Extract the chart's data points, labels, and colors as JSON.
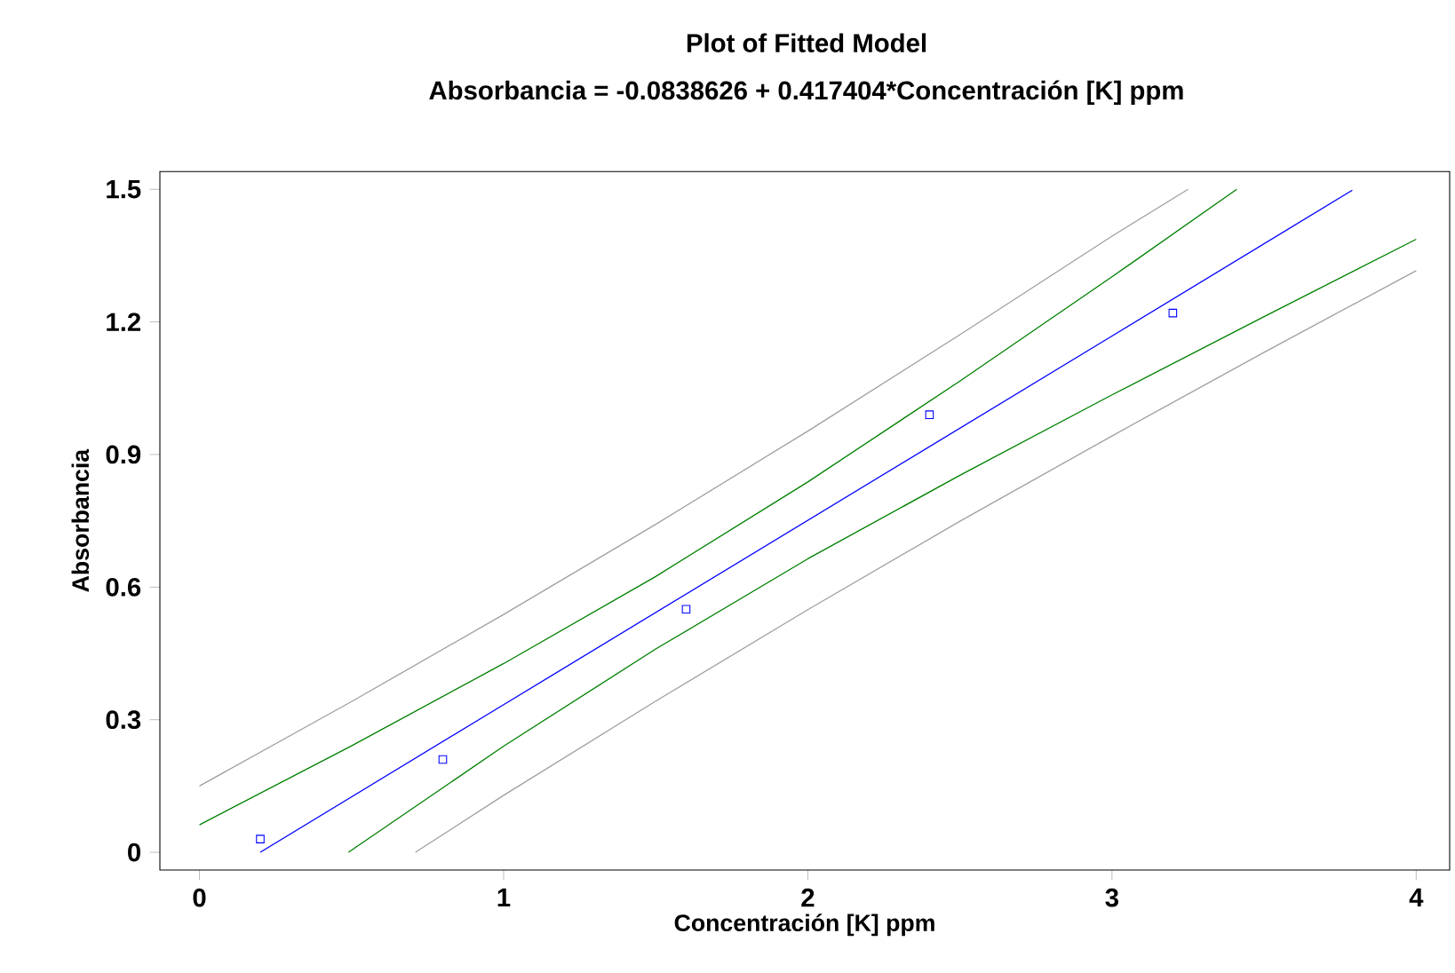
{
  "chart_data": {
    "type": "line",
    "title": "Plot of Fitted Model",
    "subtitle": "Absorbancia = -0.0838626 + 0.417404*Concentración [K] ppm",
    "xlabel": "Concentración [K] ppm",
    "ylabel": "Absorbancia",
    "xlim": [
      -0.13,
      4.11
    ],
    "ylim": [
      -0.04,
      1.54
    ],
    "xticks": [
      0,
      1,
      2,
      3,
      4
    ],
    "yticks": [
      0,
      0.3,
      0.6,
      0.9,
      1.2,
      1.5
    ],
    "grid": false,
    "series": [
      {
        "type": "scatter",
        "marker": "square",
        "color": "#0000ff",
        "x": [
          0.2,
          0.8,
          1.6,
          2.4,
          3.2
        ],
        "values": [
          0.03,
          0.21,
          0.55,
          0.99,
          1.22
        ]
      },
      {
        "marker": "none",
        "color": "#0000ff",
        "x": [
          0.2,
          1,
          2,
          3,
          3.79
        ],
        "values": [
          0.0,
          0.334,
          0.751,
          1.168,
          1.498
        ]
      },
      {
        "marker": "none",
        "color": "#008000",
        "x": [
          0,
          0.5,
          1,
          1.5,
          2,
          2.5,
          3,
          3.41
        ],
        "values": [
          0.062,
          0.241,
          0.427,
          0.624,
          0.838,
          1.066,
          1.302,
          1.5
        ]
      },
      {
        "marker": "none",
        "color": "#008000",
        "x": [
          0.49,
          1,
          1.5,
          2,
          2.5,
          3,
          3.5,
          4
        ],
        "values": [
          0.0,
          0.24,
          0.46,
          0.664,
          0.853,
          1.035,
          1.212,
          1.387
        ]
      },
      {
        "marker": "none",
        "color": "#a0a0a0",
        "x": [
          0,
          0.5,
          1,
          1.5,
          2,
          2.5,
          3,
          3.25
        ],
        "values": [
          0.15,
          0.341,
          0.538,
          0.742,
          0.953,
          1.171,
          1.394,
          1.5
        ]
      },
      {
        "marker": "none",
        "color": "#a0a0a0",
        "x": [
          0.71,
          1,
          1.5,
          2,
          2.5,
          3,
          3.5,
          4
        ],
        "values": [
          0.0,
          0.129,
          0.342,
          0.549,
          0.749,
          0.942,
          1.131,
          1.316
        ]
      }
    ]
  }
}
